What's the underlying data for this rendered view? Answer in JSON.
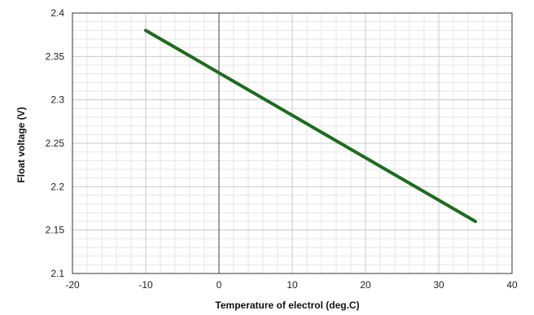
{
  "chart_data": {
    "type": "line",
    "title": "",
    "xlabel": "Temperature of electrol (deg.C)",
    "ylabel": "Float voltage (V)",
    "xlim": [
      -20,
      40
    ],
    "ylim": [
      2.1,
      2.4
    ],
    "x_ticks": [
      "-20",
      "-10",
      "0",
      "10",
      "20",
      "30",
      "40"
    ],
    "y_ticks": [
      "2.1",
      "2.15",
      "2.2",
      "2.25",
      "2.3",
      "2.35",
      "2.4"
    ],
    "grid": true,
    "minor_grid_per_major": 5,
    "legend": "none",
    "zero_line_x": 0,
    "series": [
      {
        "x": [
          -10,
          35
        ],
        "y": [
          2.38,
          2.16
        ],
        "color": "#1e6b1e"
      }
    ]
  }
}
